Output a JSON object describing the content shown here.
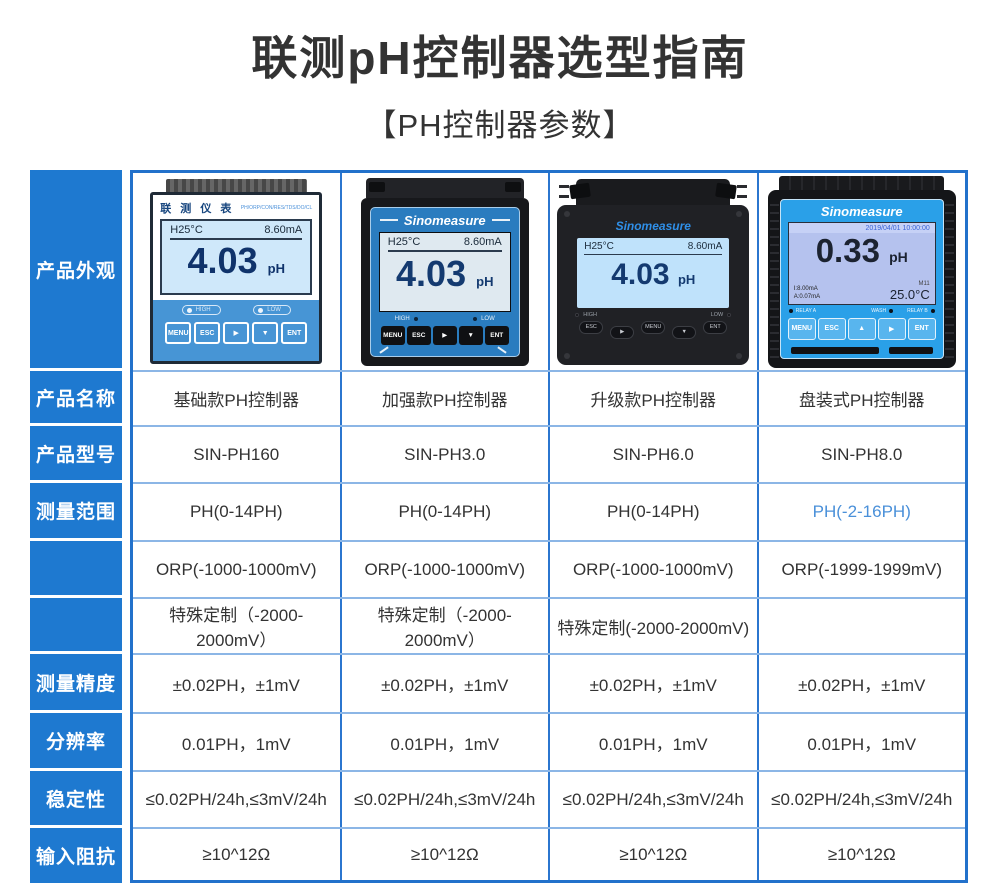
{
  "page": {
    "title": "联测pH控制器选型指南",
    "subtitle": "【PH控制器参数】"
  },
  "colors": {
    "header_blue": "#1e79d0",
    "grid_outer": "#2271cb",
    "grid_vertical": "#2b76cf",
    "grid_horizontal": "#8cb6e6",
    "highlight_text": "#4a90d9",
    "device_panel_blue": "#2aa0e8"
  },
  "table": {
    "row_headers": [
      "产品外观",
      "产品名称",
      "产品型号",
      "测量范围",
      "",
      "",
      "测量精度",
      "分辨率",
      "稳定性",
      "输入阻抗"
    ],
    "products": [
      {
        "name": "基础款PH控制器",
        "model": "SIN-PH160",
        "ph_range": "PH(0-14PH)",
        "orp_range": "ORP(-1000-1000mV)",
        "custom_range": "特殊定制（-2000-2000mV）",
        "accuracy": "±0.02PH，±1mV",
        "resolution": "0.01PH，1mV",
        "stability": "≤0.02PH/24h,≤3mV/24h",
        "impedance": "≥10^12Ω"
      },
      {
        "name": "加强款PH控制器",
        "model": "SIN-PH3.0",
        "ph_range": "PH(0-14PH)",
        "orp_range": "ORP(-1000-1000mV)",
        "custom_range": "特殊定制（-2000-2000mV）",
        "accuracy": "±0.02PH，±1mV",
        "resolution": "0.01PH，1mV",
        "stability": "≤0.02PH/24h,≤3mV/24h",
        "impedance": "≥10^12Ω"
      },
      {
        "name": "升级款PH控制器",
        "model": "SIN-PH6.0",
        "ph_range": "PH(0-14PH)",
        "orp_range": "ORP(-1000-1000mV)",
        "custom_range": "特殊定制(-2000-2000mV)",
        "accuracy": "±0.02PH，±1mV",
        "resolution": "0.01PH，1mV",
        "stability": "≤0.02PH/24h,≤3mV/24h",
        "impedance": "≥10^12Ω"
      },
      {
        "name": "盘装式PH控制器",
        "model": "SIN-PH8.0",
        "ph_range": "PH(-2-16PH)",
        "orp_range": "ORP(-1999-1999mV)",
        "custom_range": "",
        "accuracy": "±0.02PH，±1mV",
        "resolution": "0.01PH，1mV",
        "stability": "≤0.02PH/24h,≤3mV/24h",
        "impedance": "≥10^12Ω"
      }
    ]
  },
  "devices": [
    {
      "brand": "联 测 仪 表",
      "spec_line": "PH/ORP/CON/RES/TDS/DO/CL",
      "screen": {
        "temp": "H25°C",
        "current": "8.60mA",
        "value": "4.03",
        "unit": "pH"
      },
      "indicators": [
        "HIGH",
        "LOW"
      ],
      "buttons": [
        "MENU",
        "ESC",
        "▶",
        "▼",
        "ENT"
      ]
    },
    {
      "brand": "Sinomeasure",
      "screen": {
        "temp": "H25°C",
        "current": "8.60mA",
        "value": "4.03",
        "unit": "pH"
      },
      "indicators": [
        "HIGH",
        "LOW"
      ],
      "buttons": [
        "MENU",
        "ESC",
        "▶",
        "▼",
        "ENT"
      ]
    },
    {
      "brand": "Sinomeasure",
      "screen": {
        "temp": "H25°C",
        "current": "8.60mA",
        "value": "4.03",
        "unit": "pH"
      },
      "indicators": [
        "HIGH",
        "LOW"
      ],
      "buttons": [
        "ESC",
        "▶",
        "MENU",
        "▼",
        "ENT"
      ]
    },
    {
      "brand": "Sinomeasure",
      "screen": {
        "datetime": "2019/04/01 10:00:00",
        "value": "0.33",
        "unit": "pH",
        "mode": "M11",
        "output1": "I:8.00mA",
        "output2": "A:0.07mA",
        "temp": "25.0°C"
      },
      "indicators": [
        "RELAY A",
        "WASH",
        "RELAY B"
      ],
      "buttons": [
        "MENU",
        "ESC",
        "▲",
        "▶",
        "ENT"
      ]
    }
  ]
}
